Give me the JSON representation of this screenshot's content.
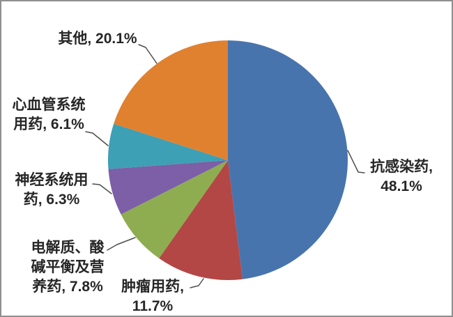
{
  "chart_data": {
    "type": "pie",
    "title": "",
    "start_angle_deg": 0,
    "direction": "clockwise",
    "legend_position": "none",
    "label_style": "outside-with-leader-lines",
    "text_color": "#262626",
    "leader_line_color": "#4d4d4d",
    "background_color": "#ffffff",
    "frame_border_color": "#8f8f8f",
    "slices": [
      {
        "name": "抗感染药",
        "value": 48.1,
        "color": "#4874ae",
        "label_lines": [
          "抗感染药,",
          "48.1%"
        ]
      },
      {
        "name": "肿瘤用药",
        "value": 11.7,
        "color": "#b34745",
        "label_lines": [
          "肿瘤用药,",
          "11.7%"
        ]
      },
      {
        "name": "电解质、酸碱平衡及营养药",
        "value": 7.8,
        "color": "#8ead51",
        "label_lines": [
          "电解质、酸",
          "碱平衡及营",
          "养药, 7.8%"
        ]
      },
      {
        "name": "神经系统用药",
        "value": 6.3,
        "color": "#7c5fa6",
        "label_lines": [
          "神经系统用",
          "药, 6.3%"
        ]
      },
      {
        "name": "心血管系统用药",
        "value": 6.1,
        "color": "#3da0b5",
        "label_lines": [
          "心血管系统",
          "用药, 6.1%"
        ]
      },
      {
        "name": "其他",
        "value": 20.1,
        "color": "#e0812f",
        "label_lines": [
          "其他, 20.1%"
        ]
      }
    ]
  }
}
